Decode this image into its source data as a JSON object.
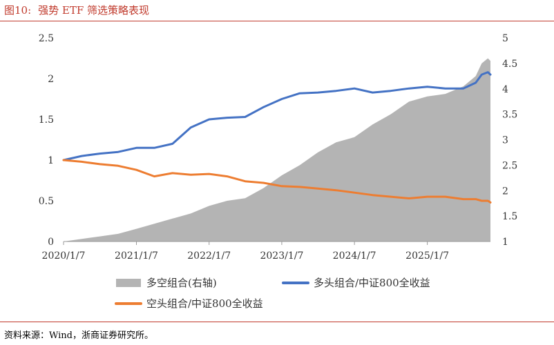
{
  "header": {
    "figure_no": "图10:",
    "title": "强势 ETF 筛选策略表现"
  },
  "footer": {
    "source": "资料来源：Wind，浙商证券研究所。"
  },
  "chart_data": {
    "type": "line",
    "x_ticks": [
      "2020/1/7",
      "2021/1/7",
      "2022/1/7",
      "2023/1/7",
      "2024/1/7",
      "2025/1/7"
    ],
    "y_left": {
      "range": [
        0,
        2.5
      ],
      "ticks": [
        "0",
        "0.5",
        "1",
        "1.5",
        "2",
        "2.5"
      ]
    },
    "y_right": {
      "range": [
        1,
        5
      ],
      "ticks": [
        "1",
        "1.5",
        "2",
        "2.5",
        "3",
        "3.5",
        "4",
        "4.5",
        "5"
      ]
    },
    "legend_position": "bottom",
    "series": [
      {
        "name": "多空组合(右轴)",
        "kind": "area",
        "axis": "right",
        "color": "#b4b4b4",
        "points": [
          [
            "2020/1/7",
            1.0
          ],
          [
            "2020/4/7",
            1.05
          ],
          [
            "2020/7/7",
            1.1
          ],
          [
            "2020/10/7",
            1.15
          ],
          [
            "2021/1/7",
            1.25
          ],
          [
            "2021/4/7",
            1.35
          ],
          [
            "2021/7/7",
            1.45
          ],
          [
            "2021/10/7",
            1.55
          ],
          [
            "2022/1/7",
            1.7
          ],
          [
            "2022/4/7",
            1.8
          ],
          [
            "2022/7/7",
            1.85
          ],
          [
            "2022/10/7",
            2.05
          ],
          [
            "2023/1/7",
            2.3
          ],
          [
            "2023/4/7",
            2.5
          ],
          [
            "2023/7/7",
            2.75
          ],
          [
            "2023/10/7",
            2.95
          ],
          [
            "2024/1/7",
            3.05
          ],
          [
            "2024/4/7",
            3.3
          ],
          [
            "2024/7/7",
            3.5
          ],
          [
            "2024/10/7",
            3.75
          ],
          [
            "2025/1/7",
            3.85
          ],
          [
            "2025/4/7",
            3.9
          ],
          [
            "2025/7/7",
            4.05
          ],
          [
            "2025/9/7",
            4.25
          ],
          [
            "2025/10/7",
            4.5
          ],
          [
            "2025/11/7",
            4.6
          ],
          [
            "2025/11/20",
            4.55
          ]
        ]
      },
      {
        "name": "多头组合/中证800全收益",
        "kind": "line",
        "axis": "left",
        "color": "#4472c4",
        "points": [
          [
            "2020/1/7",
            1.0
          ],
          [
            "2020/4/7",
            1.05
          ],
          [
            "2020/7/7",
            1.08
          ],
          [
            "2020/10/7",
            1.1
          ],
          [
            "2021/1/7",
            1.15
          ],
          [
            "2021/4/7",
            1.15
          ],
          [
            "2021/7/7",
            1.2
          ],
          [
            "2021/10/7",
            1.4
          ],
          [
            "2022/1/7",
            1.5
          ],
          [
            "2022/4/7",
            1.52
          ],
          [
            "2022/7/7",
            1.53
          ],
          [
            "2022/10/7",
            1.65
          ],
          [
            "2023/1/7",
            1.75
          ],
          [
            "2023/4/7",
            1.82
          ],
          [
            "2023/7/7",
            1.83
          ],
          [
            "2023/10/7",
            1.85
          ],
          [
            "2024/1/7",
            1.88
          ],
          [
            "2024/4/7",
            1.83
          ],
          [
            "2024/7/7",
            1.85
          ],
          [
            "2024/10/7",
            1.88
          ],
          [
            "2025/1/7",
            1.9
          ],
          [
            "2025/4/7",
            1.88
          ],
          [
            "2025/7/7",
            1.88
          ],
          [
            "2025/9/7",
            1.95
          ],
          [
            "2025/10/7",
            2.05
          ],
          [
            "2025/11/7",
            2.08
          ],
          [
            "2025/11/20",
            2.05
          ]
        ]
      },
      {
        "name": "空头组合/中证800全收益",
        "kind": "line",
        "axis": "left",
        "color": "#ed7d31",
        "points": [
          [
            "2020/1/7",
            1.0
          ],
          [
            "2020/4/7",
            0.98
          ],
          [
            "2020/7/7",
            0.95
          ],
          [
            "2020/10/7",
            0.93
          ],
          [
            "2021/1/7",
            0.88
          ],
          [
            "2021/4/7",
            0.8
          ],
          [
            "2021/7/7",
            0.84
          ],
          [
            "2021/10/7",
            0.82
          ],
          [
            "2022/1/7",
            0.83
          ],
          [
            "2022/4/7",
            0.8
          ],
          [
            "2022/7/7",
            0.74
          ],
          [
            "2022/10/7",
            0.72
          ],
          [
            "2023/1/7",
            0.68
          ],
          [
            "2023/4/7",
            0.67
          ],
          [
            "2023/7/7",
            0.65
          ],
          [
            "2023/10/7",
            0.63
          ],
          [
            "2024/1/7",
            0.6
          ],
          [
            "2024/4/7",
            0.57
          ],
          [
            "2024/7/7",
            0.55
          ],
          [
            "2024/10/7",
            0.53
          ],
          [
            "2025/1/7",
            0.55
          ],
          [
            "2025/4/7",
            0.55
          ],
          [
            "2025/7/7",
            0.52
          ],
          [
            "2025/9/7",
            0.52
          ],
          [
            "2025/10/7",
            0.5
          ],
          [
            "2025/11/7",
            0.5
          ],
          [
            "2025/11/20",
            0.48
          ]
        ]
      }
    ]
  }
}
